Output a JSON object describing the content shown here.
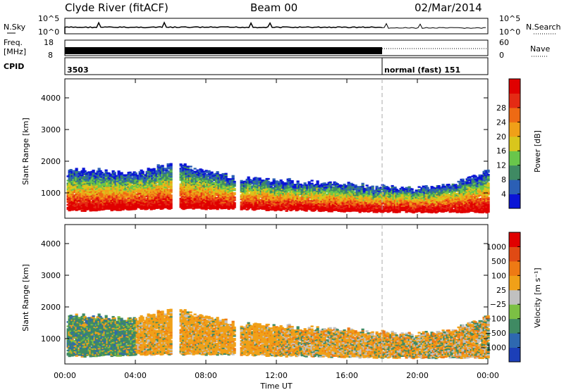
{
  "header": {
    "station": "Clyde River (fitACF)",
    "beam": "Beam 00",
    "date": "02/Mar/2014"
  },
  "noise_panel": {
    "left_label": "N.Sky",
    "right_label": "N.Search",
    "ticks_left": [
      "10^5",
      "10^0"
    ],
    "ticks_right": [
      "10^5",
      "10^0"
    ]
  },
  "freq_panel": {
    "left_label_1": "Freq.",
    "left_label_2": "[MHz]",
    "right_label": "Nave",
    "ticks_left": [
      "18",
      "8"
    ],
    "ticks_right": [
      "60",
      "0"
    ]
  },
  "cpid_panel": {
    "label": "CPID",
    "program_1": "3503",
    "program_2": "normal (fast) 151",
    "switch_time_hours": 18.0
  },
  "chart_data": [
    {
      "type": "heatmap",
      "parameter": "Power",
      "ylabel": "Slant Range [km]",
      "xlabel": "Time UT",
      "ylim": [
        200,
        4600
      ],
      "xlim_hours": [
        0,
        24
      ],
      "yticks": [
        "1000",
        "2000",
        "3000",
        "4000"
      ],
      "xticks": [
        "00:00",
        "04:00",
        "08:00",
        "12:00",
        "16:00",
        "20:00",
        "00:00"
      ],
      "colorbar": {
        "label": "Power [dB]",
        "ticks": [
          "4",
          "8",
          "12",
          "16",
          "20",
          "24",
          "28"
        ],
        "colors": [
          "#0a14d6",
          "#2b5fb5",
          "#3f8a63",
          "#69c64b",
          "#d9c61c",
          "#f0a018",
          "#ee6a14",
          "#e42b14",
          "#e00000"
        ]
      },
      "echo_band_km": {
        "times_hours": [
          0.5,
          2,
          4,
          6,
          8,
          10,
          12,
          14,
          16,
          18,
          20,
          22,
          24
        ],
        "lower": [
          450,
          450,
          500,
          500,
          500,
          500,
          450,
          450,
          420,
          400,
          400,
          400,
          400
        ],
        "upper": [
          1700,
          1650,
          1600,
          1900,
          1650,
          1400,
          1350,
          1300,
          1250,
          1150,
          1100,
          1250,
          1650
        ]
      }
    },
    {
      "type": "heatmap",
      "parameter": "Velocity",
      "ylabel": "Slant Range [km]",
      "xlabel": "Time UT",
      "ylim": [
        200,
        4600
      ],
      "xlim_hours": [
        0,
        24
      ],
      "yticks": [
        "1000",
        "2000",
        "3000",
        "4000"
      ],
      "xticks": [
        "00:00",
        "04:00",
        "08:00",
        "12:00",
        "16:00",
        "20:00",
        "00:00"
      ],
      "colorbar": {
        "label": "Velocity [m s⁻¹]",
        "ticks": [
          "1000",
          "500",
          "100",
          "25",
          "−25",
          "−100",
          "−500",
          "−1000"
        ],
        "colors": [
          "#1c3fb8",
          "#2e68b0",
          "#3f8a63",
          "#7cc044",
          "#c0c0c0",
          "#f0a018",
          "#ee7a14",
          "#e04a14",
          "#e00000"
        ]
      }
    }
  ]
}
